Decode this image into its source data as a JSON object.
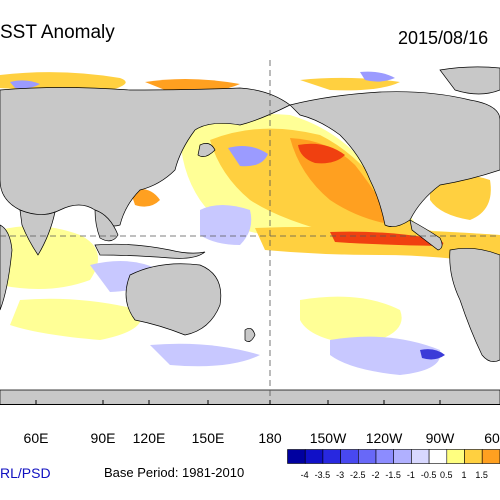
{
  "title": "SST Anomaly",
  "date": "2015/08/16",
  "source": "RL/PSD",
  "base_period": "Base Period: 1981-2010",
  "longitude_ticks": [
    "60E",
    "90E",
    "120E",
    "150E",
    "180",
    "150W",
    "120W",
    "90W",
    "60"
  ],
  "colors": {
    "land": "#c8c8c8",
    "ocean_neutral": "#ffffff",
    "cool_light": "#c8c8ff",
    "cool_mid": "#9b9bff",
    "cool_dark": "#3b3bd8",
    "warm_light": "#ffff96",
    "warm_mid": "#ffd040",
    "warm_orange": "#ffa020",
    "warm_red": "#f04010",
    "warm_dark": "#b00000"
  },
  "legend": {
    "labels": [
      "-4",
      "-3.5",
      "-3",
      "-2.5",
      "-2",
      "-1.5",
      "-1",
      "-0.5",
      "0.5",
      "1",
      "1.5"
    ],
    "colors": [
      "#0000a0",
      "#1010c8",
      "#2828e0",
      "#4848f0",
      "#6868f8",
      "#8c8cff",
      "#b0b0ff",
      "#d8d8ff",
      "#ffffff",
      "#ffff80",
      "#ffd040",
      "#ffa020"
    ]
  }
}
